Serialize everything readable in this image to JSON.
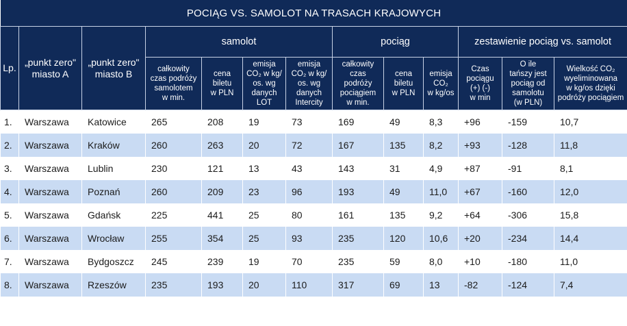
{
  "title": "POCIĄG VS. SAMOLOT NA TRASACH  KRAJOWYCH",
  "headers": {
    "lp": "Lp.",
    "city_a": "„punkt zero\"\nmiasto A",
    "city_b": "„punkt zero\"\nmiasto B",
    "group_plane": "samolot",
    "group_train": "pociąg",
    "group_compare": "zestawienie pociąg vs. samolot",
    "plane_time": "całkowity\nczas podróży\nsamolotem\nw min.",
    "plane_price": "cena\nbiletu\nw PLN",
    "plane_co2_lot": "emisja\nCO₂ w kg/\nos. wg\ndanych\nLOT",
    "plane_co2_ic": "emisja\nCO₂ w kg/\nos. wg\ndanych\nIntercity",
    "train_time": "całkowity\nczas\npodróży\npociągiem\nw min.",
    "train_price": "cena\nbiletu\nw PLN",
    "train_co2": "emisja\nCO₂\nw kg/os",
    "cmp_time": "Czas\npociągu\n(+) (-)\nw min",
    "cmp_cheaper": "O ile\ntańszy jest\npociąg od\nsamolotu\n(w PLN)",
    "cmp_co2": "Wielkość CO₂\nwyeliminowana\nw kg/os dzięki\npodróży pociągiem"
  },
  "rows": [
    {
      "lp": "1.",
      "a": "Warszawa",
      "b": "Katowice",
      "pt": "265",
      "pp": "208",
      "pcl": "19",
      "pci": "73",
      "tt": "169",
      "tp": "49",
      "tc": "8,3",
      "dt": "+96",
      "dp": "-159",
      "dc": "10,7"
    },
    {
      "lp": "2.",
      "a": "Warszawa",
      "b": "Kraków",
      "pt": "260",
      "pp": "263",
      "pcl": "20",
      "pci": "72",
      "tt": "167",
      "tp": "135",
      "tc": "8,2",
      "dt": "+93",
      "dp": "-128",
      "dc": "11,8"
    },
    {
      "lp": "3.",
      "a": "Warszawa",
      "b": "Lublin",
      "pt": "230",
      "pp": "121",
      "pcl": "13",
      "pci": "43",
      "tt": "143",
      "tp": "31",
      "tc": "4,9",
      "dt": "+87",
      "dp": "-91",
      "dc": "8,1"
    },
    {
      "lp": "4.",
      "a": "Warszawa",
      "b": "Poznań",
      "pt": "260",
      "pp": "209",
      "pcl": "23",
      "pci": "96",
      "tt": "193",
      "tp": "49",
      "tc": "11,0",
      "dt": "+67",
      "dp": "-160",
      "dc": "12,0"
    },
    {
      "lp": "5.",
      "a": "Warszawa",
      "b": "Gdańsk",
      "pt": "225",
      "pp": "441",
      "pcl": "25",
      "pci": "80",
      "tt": "161",
      "tp": "135",
      "tc": "9,2",
      "dt": "+64",
      "dp": "-306",
      "dc": "15,8"
    },
    {
      "lp": "6.",
      "a": "Warszawa",
      "b": "Wrocław",
      "pt": "255",
      "pp": "354",
      "pcl": "25",
      "pci": "93",
      "tt": "235",
      "tp": "120",
      "tc": "10,6",
      "dt": "+20",
      "dp": "-234",
      "dc": "14,4"
    },
    {
      "lp": "7.",
      "a": "Warszawa",
      "b": "Bydgoszcz",
      "pt": "245",
      "pp": "239",
      "pcl": "19",
      "pci": "70",
      "tt": "235",
      "tp": "59",
      "tc": "8,0",
      "dt": "+10",
      "dp": "-180",
      "dc": "11,0"
    },
    {
      "lp": "8.",
      "a": "Warszawa",
      "b": "Rzeszów",
      "pt": "235",
      "pp": "193",
      "pcl": "20",
      "pci": "110",
      "tt": "317",
      "tp": "69",
      "tc": "13",
      "dt": "-82",
      "dp": "-124",
      "dc": "7,4"
    }
  ]
}
